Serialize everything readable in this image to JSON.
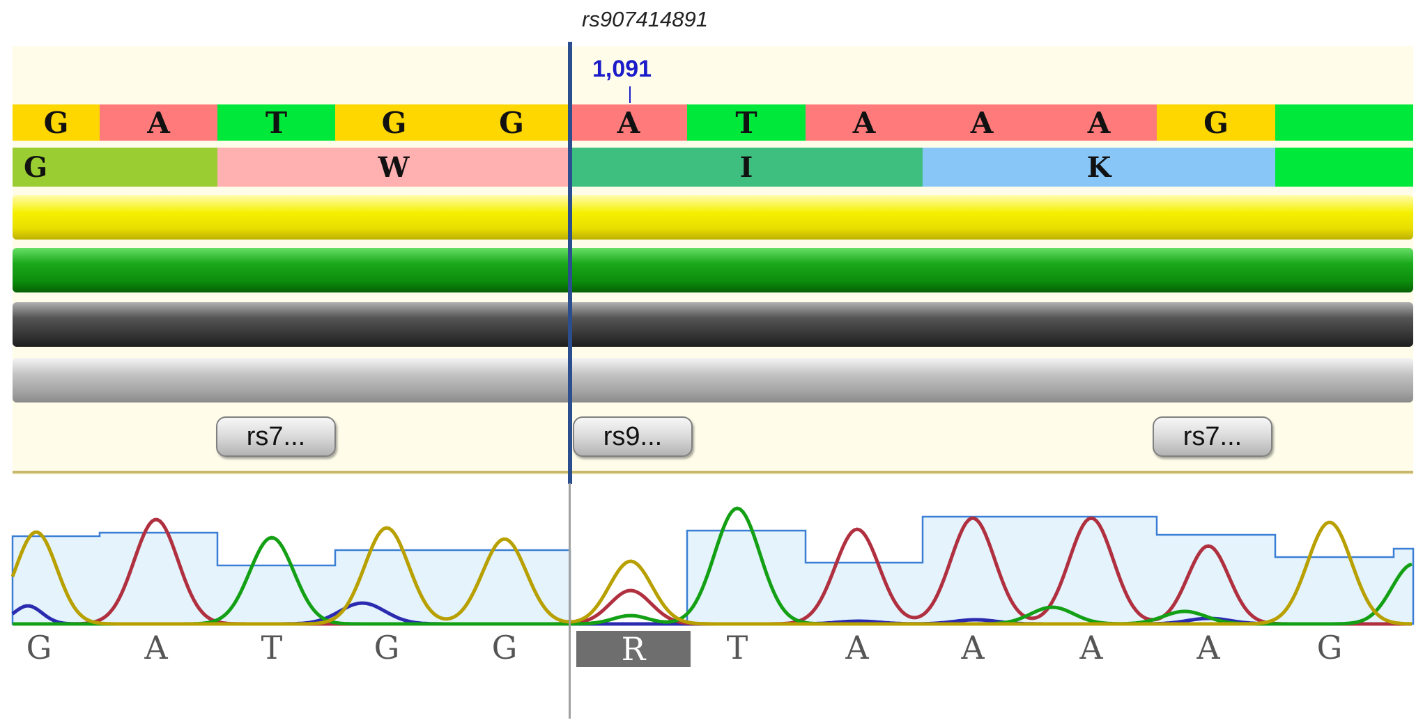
{
  "snp_title": "rs907414891",
  "position_label": "1,091",
  "nucleotides": [
    {
      "base": "G",
      "color": "#ffd700"
    },
    {
      "base": "A",
      "color": "#ff7b7b"
    },
    {
      "base": "T",
      "color": "#00e83a"
    },
    {
      "base": "G",
      "color": "#ffd700"
    },
    {
      "base": "G",
      "color": "#ffd700"
    },
    {
      "base": "A",
      "color": "#ff7b7b"
    },
    {
      "base": "T",
      "color": "#00e83a"
    },
    {
      "base": "A",
      "color": "#ff7b7b"
    },
    {
      "base": "A",
      "color": "#ff7b7b"
    },
    {
      "base": "A",
      "color": "#ff7b7b"
    },
    {
      "base": "G",
      "color": "#ffd700"
    },
    {
      "base": "",
      "color": "#00e83a"
    }
  ],
  "amino_acids": [
    {
      "aa": "G",
      "color": "#9acd32"
    },
    {
      "aa": "W",
      "color": "#ffb0b0"
    },
    {
      "aa": "I",
      "color": "#3fbf7f"
    },
    {
      "aa": "K",
      "color": "#87c6f7"
    },
    {
      "aa": "",
      "color": "#00e83a"
    }
  ],
  "snp_buttons": [
    {
      "label": "rs7..."
    },
    {
      "label": "rs9..."
    },
    {
      "label": "rs7..."
    }
  ],
  "base_calls": [
    {
      "base": "G",
      "ambiguous": false
    },
    {
      "base": "A",
      "ambiguous": false
    },
    {
      "base": "T",
      "ambiguous": false
    },
    {
      "base": "G",
      "ambiguous": false
    },
    {
      "base": "G",
      "ambiguous": false
    },
    {
      "base": "R",
      "ambiguous": true
    },
    {
      "base": "T",
      "ambiguous": false
    },
    {
      "base": "A",
      "ambiguous": false
    },
    {
      "base": "A",
      "ambiguous": false
    },
    {
      "base": "A",
      "ambiguous": false
    },
    {
      "base": "A",
      "ambiguous": false
    },
    {
      "base": "G",
      "ambiguous": false
    }
  ],
  "trace_colors": {
    "A": "#b03040",
    "T": "#14a014",
    "G": "#b8a000",
    "C": "#2b2bb0",
    "quality": "#3a7fd5",
    "quality_fill": "#e4f3fc",
    "ambiguous_call": "#6e6e6e"
  }
}
